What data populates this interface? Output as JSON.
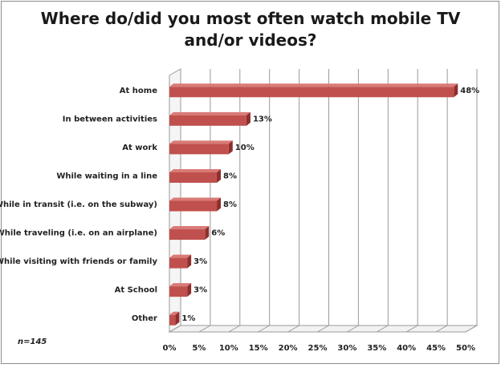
{
  "chart_data": {
    "type": "bar",
    "orientation": "horizontal",
    "title_line1": "Where do/did you most often watch mobile TV",
    "title_line2": "and/or videos?",
    "categories": [
      "At home",
      "In between activities",
      "At work",
      "While waiting in a line",
      "While in transit (i.e. on the subway)",
      "While traveling (i.e. on an airplane)",
      "While visiting with friends or family",
      "At School",
      "Other"
    ],
    "values": [
      48,
      13,
      10,
      8,
      8,
      6,
      3,
      3,
      1
    ],
    "value_labels": [
      "48%",
      "13%",
      "10%",
      "8%",
      "8%",
      "6%",
      "3%",
      "3%",
      "1%"
    ],
    "x_ticks": [
      "0%",
      "5%",
      "10%",
      "15%",
      "20%",
      "25%",
      "30%",
      "35%",
      "40%",
      "45%",
      "50%"
    ],
    "xlim": [
      0,
      50
    ],
    "grid": true,
    "bar_color": "#c0504d",
    "note": "n=145"
  }
}
